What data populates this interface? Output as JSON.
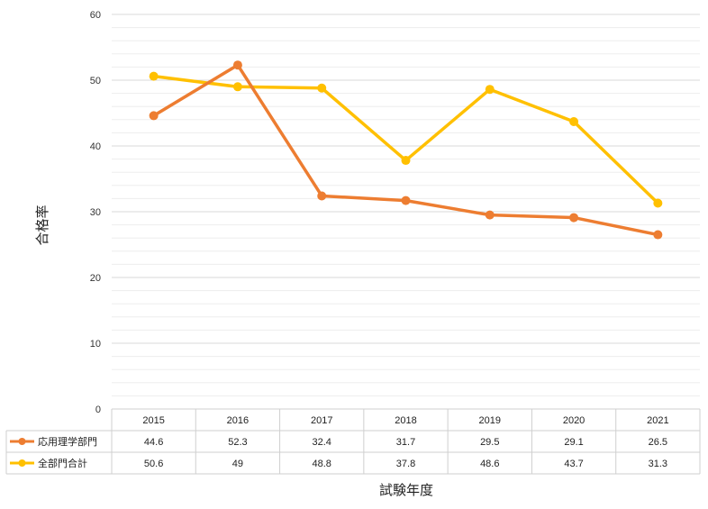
{
  "chart_data": {
    "type": "line",
    "ylabel": "合格率",
    "xlabel": "試験年度",
    "ylim": [
      0,
      60
    ],
    "yticks": [
      0,
      10,
      20,
      30,
      40,
      50,
      60
    ],
    "grid": true,
    "legend": "data-table-left",
    "categories": [
      "2015",
      "2016",
      "2017",
      "2018",
      "2019",
      "2020",
      "2021"
    ],
    "series": [
      {
        "name": "応用理学部門",
        "color": "#ED7D31",
        "values": [
          44.6,
          52.3,
          32.4,
          31.7,
          29.5,
          29.1,
          26.5
        ]
      },
      {
        "name": "全部門合計",
        "color": "#FFC000",
        "values": [
          50.6,
          49,
          48.8,
          37.8,
          48.6,
          43.7,
          31.3
        ]
      }
    ]
  }
}
